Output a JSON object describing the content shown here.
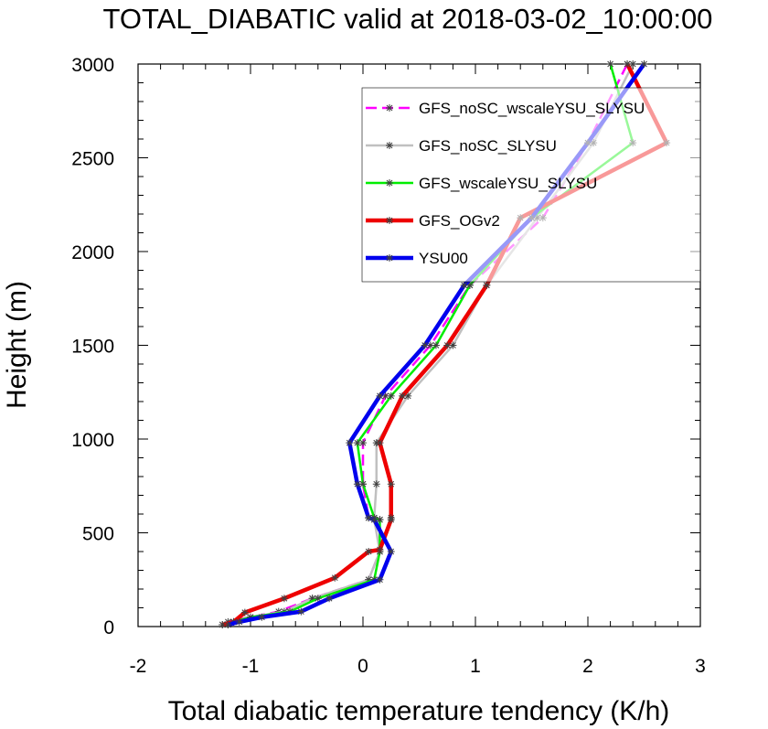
{
  "chart_data": {
    "type": "line",
    "title": "TOTAL_DIABATIC valid at 2018-03-02_10:00:00",
    "xlabel": "Total diabatic temperature tendency (K/h)",
    "ylabel": "Height (m)",
    "xlim": [
      -2,
      3
    ],
    "ylim": [
      0,
      3000
    ],
    "xticks": [
      "-2",
      "-1",
      "0",
      "1",
      "2",
      "3"
    ],
    "yticks": [
      "0",
      "500",
      "1000",
      "1500",
      "2000",
      "2500",
      "3000"
    ],
    "grid": false,
    "legend_position": "top-right",
    "series": [
      {
        "name": "GFS_noSC_wscaleYSU_SLYSU",
        "color": "#ff00ff",
        "dash": true,
        "width": 2.5,
        "x": [
          -1.25,
          -1.2,
          -1.0,
          -0.75,
          -0.45,
          0.05,
          0.15,
          0.15,
          0.05,
          0.0,
          0.0,
          0.2,
          0.6,
          0.95,
          1.6,
          2.0,
          2.35
        ],
        "y": [
          10,
          25,
          50,
          80,
          150,
          250,
          400,
          570,
          580,
          760,
          980,
          1230,
          1500,
          1820,
          2180,
          2580,
          3000
        ]
      },
      {
        "name": "GFS_noSC_SLYSU",
        "color": "#c0c0c0",
        "dash": false,
        "width": 2.5,
        "x": [
          -1.2,
          -1.15,
          -1.0,
          -0.7,
          -0.45,
          0.05,
          0.15,
          0.1,
          0.1,
          0.12,
          0.12,
          0.4,
          0.8,
          1.1,
          1.55,
          2.05,
          2.4
        ],
        "y": [
          10,
          25,
          50,
          80,
          150,
          250,
          400,
          570,
          580,
          760,
          980,
          1230,
          1500,
          1820,
          2180,
          2580,
          3000
        ]
      },
      {
        "name": "GFS_wscaleYSU_SLYSU",
        "color": "#00ee00",
        "dash": false,
        "width": 2.5,
        "x": [
          -1.2,
          -1.15,
          -1.0,
          -0.65,
          -0.4,
          0.1,
          0.15,
          0.15,
          0.1,
          0.0,
          -0.05,
          0.25,
          0.65,
          0.95,
          1.5,
          2.4,
          2.2
        ],
        "y": [
          10,
          25,
          50,
          80,
          150,
          250,
          400,
          570,
          580,
          760,
          980,
          1230,
          1500,
          1820,
          2180,
          2580,
          3000
        ]
      },
      {
        "name": "GFS_OGv2",
        "color": "#ee0000",
        "dash": false,
        "width": 4.5,
        "x": [
          -1.25,
          -1.15,
          -1.05,
          -0.7,
          -0.25,
          0.05,
          0.15,
          0.25,
          0.25,
          0.25,
          0.15,
          0.35,
          0.75,
          1.1,
          1.4,
          2.7,
          2.35
        ],
        "y": [
          10,
          25,
          75,
          150,
          260,
          400,
          410,
          570,
          580,
          760,
          980,
          1230,
          1500,
          1820,
          2180,
          2580,
          3000
        ]
      },
      {
        "name": "YSU00",
        "color": "#0000ee",
        "dash": false,
        "width": 4.5,
        "x": [
          -1.2,
          -1.1,
          -0.9,
          -0.55,
          -0.3,
          0.15,
          0.25,
          0.1,
          0.05,
          -0.05,
          -0.12,
          0.15,
          0.55,
          0.9,
          1.5,
          2.0,
          2.5
        ],
        "y": [
          10,
          25,
          50,
          80,
          150,
          250,
          400,
          570,
          580,
          760,
          980,
          1230,
          1500,
          1820,
          2180,
          2580,
          3000
        ]
      }
    ]
  }
}
